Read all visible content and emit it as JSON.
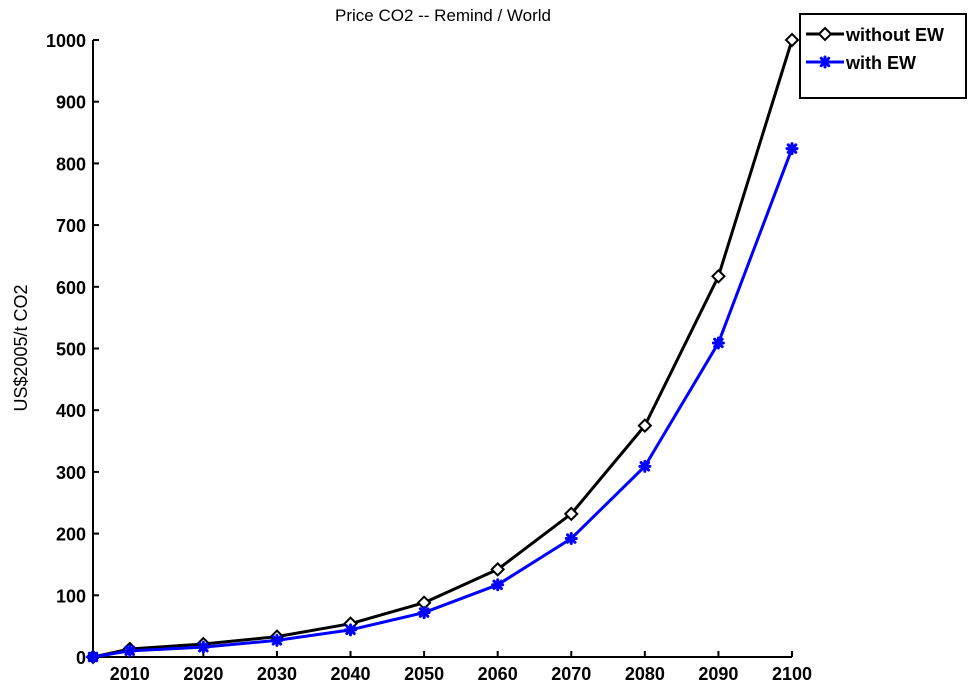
{
  "chart_data": {
    "type": "line",
    "title": "Price CO2 -- Remind / World",
    "xlabel": "",
    "ylabel": "US$2005/t CO2",
    "x": [
      2005,
      2010,
      2020,
      2030,
      2040,
      2050,
      2060,
      2070,
      2080,
      2090,
      2100
    ],
    "xticks": [
      "2010",
      "2020",
      "2030",
      "2040",
      "2050",
      "2060",
      "2070",
      "2080",
      "2090",
      "2100"
    ],
    "yticks": [
      "0",
      "100",
      "200",
      "300",
      "400",
      "500",
      "600",
      "700",
      "800",
      "900",
      "1000"
    ],
    "xlim": [
      2005,
      2100
    ],
    "ylim": [
      0,
      1000
    ],
    "grid": false,
    "legend_position": "top-right",
    "series": [
      {
        "name": "without EW",
        "color": "#000000",
        "marker": "diamond",
        "values": [
          0,
          13,
          21,
          33,
          54,
          88,
          142,
          232,
          375,
          617,
          1000
        ]
      },
      {
        "name": "with EW",
        "color": "#0000ff",
        "marker": "star",
        "values": [
          0,
          10,
          16,
          27,
          44,
          72,
          117,
          192,
          309,
          509,
          824
        ]
      }
    ]
  }
}
